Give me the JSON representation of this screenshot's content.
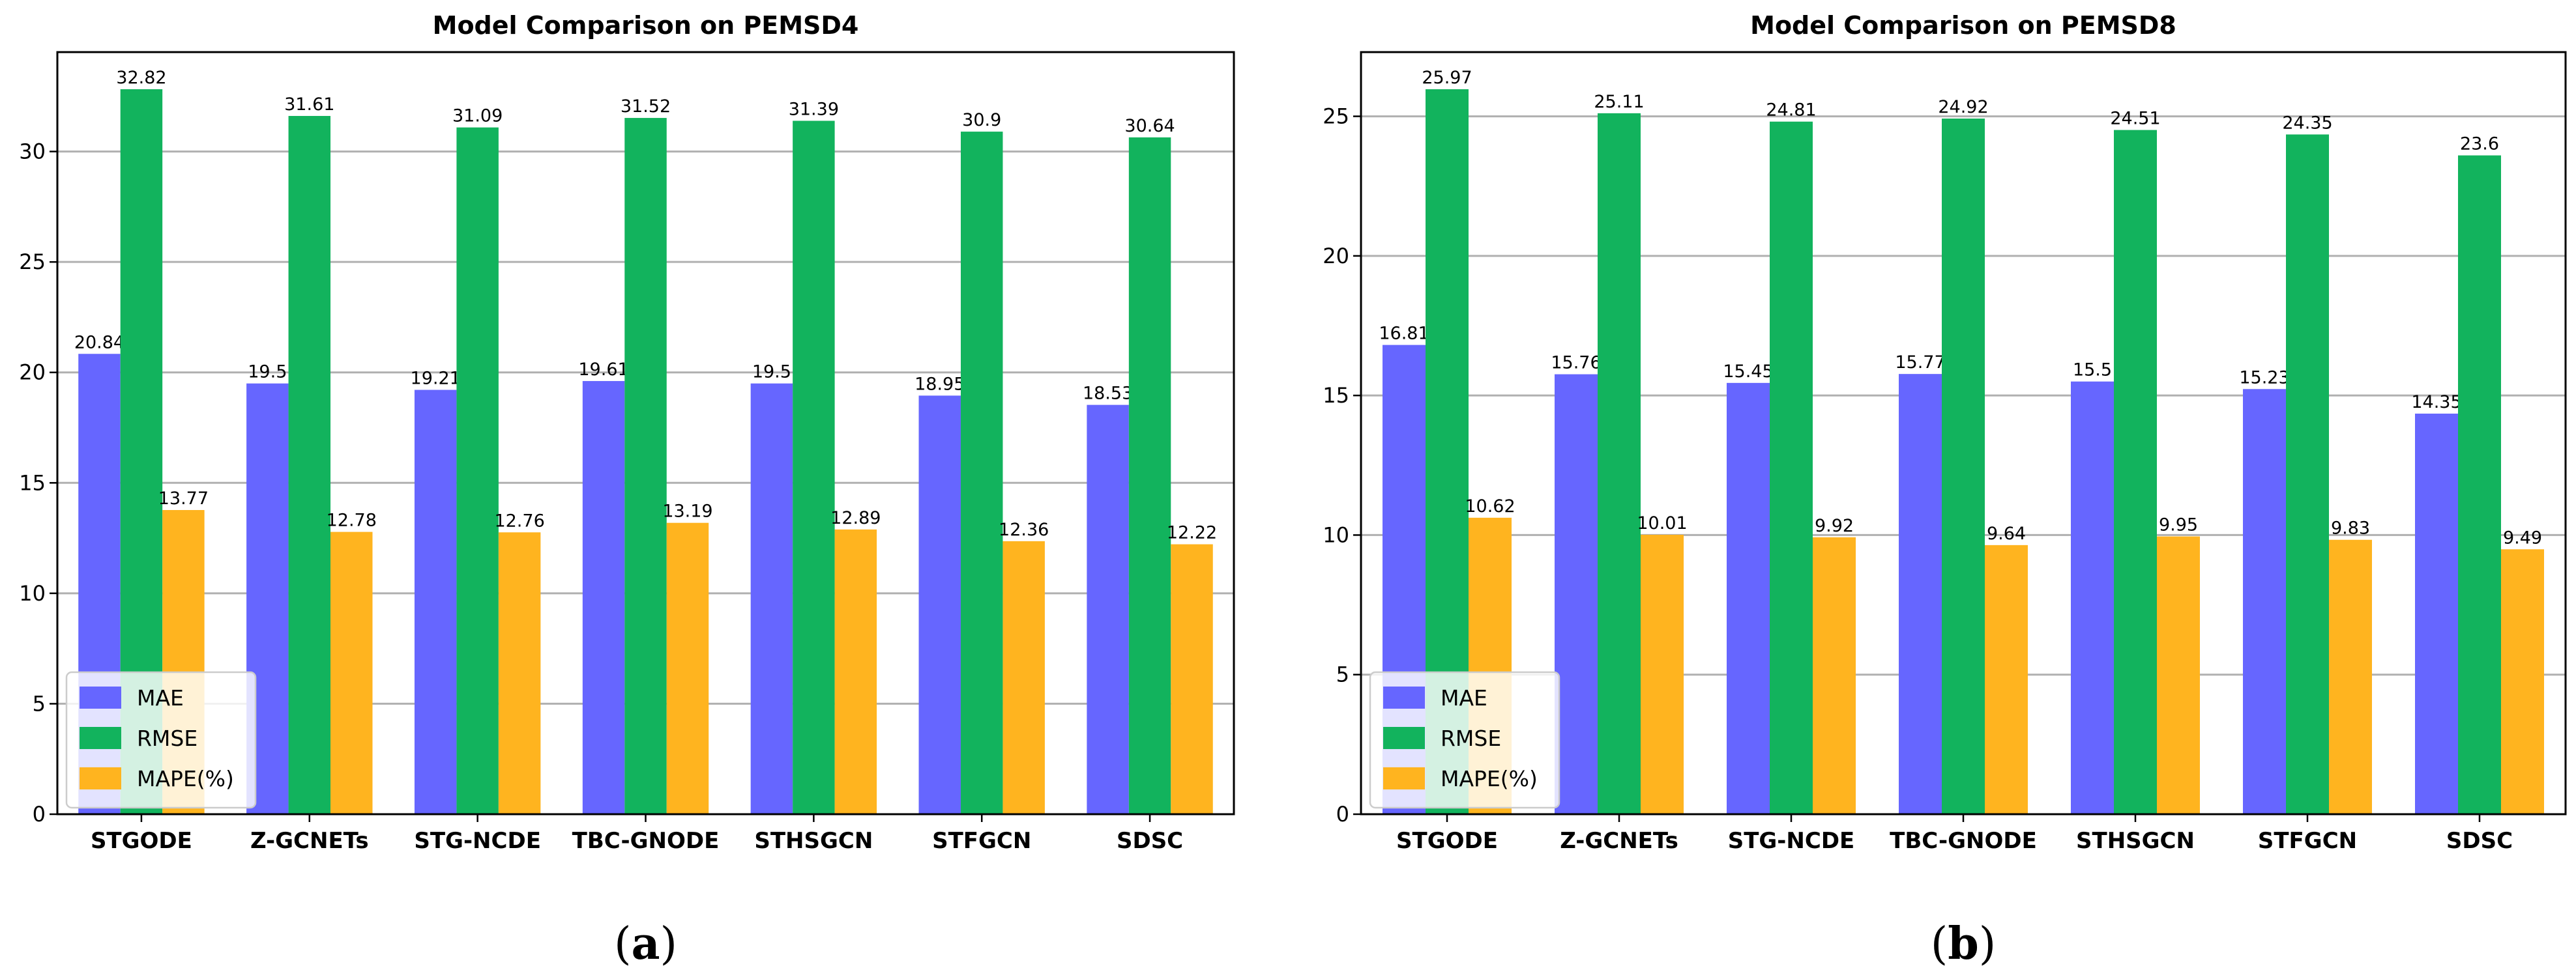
{
  "chart_data": [
    {
      "type": "bar",
      "title": "Model Comparison on PEMSD4",
      "panel_label_open": "(",
      "panel_label_letter": "a",
      "panel_label_close": ")",
      "xlabel": "",
      "ylabel": "",
      "ylim": [
        0,
        34.5
      ],
      "yticks": [
        0,
        5,
        10,
        15,
        20,
        25,
        30
      ],
      "grid": "horizontal",
      "legend_position": "bottom-left",
      "categories": [
        "STGODE",
        "Z-GCNETs",
        "STG-NCDE",
        "TBC-GNODE",
        "STHSGCN",
        "STFGCN",
        "SDSC"
      ],
      "series": [
        {
          "name": "MAE",
          "color": "#6666ff",
          "values": [
            20.84,
            19.5,
            19.21,
            19.61,
            19.5,
            18.95,
            18.53
          ],
          "labels": [
            "20.84",
            "19.5",
            "19.21",
            "19.61",
            "19.5",
            "18.95",
            "18.53"
          ]
        },
        {
          "name": "RMSE",
          "color": "#12b35d",
          "values": [
            32.82,
            31.61,
            31.09,
            31.52,
            31.39,
            30.9,
            30.64
          ],
          "labels": [
            "32.82",
            "31.61",
            "31.09",
            "31.52",
            "31.39",
            "30.9",
            "30.64"
          ]
        },
        {
          "name": "MAPE(%)",
          "color": "#ffb41f",
          "values": [
            13.77,
            12.78,
            12.76,
            13.19,
            12.89,
            12.36,
            12.22
          ],
          "labels": [
            "13.77",
            "12.78",
            "12.76",
            "13.19",
            "12.89",
            "12.36",
            "12.22"
          ]
        }
      ]
    },
    {
      "type": "bar",
      "title": "Model Comparison on PEMSD8",
      "panel_label_open": "(",
      "panel_label_letter": "b",
      "panel_label_close": ")",
      "xlabel": "",
      "ylabel": "",
      "ylim": [
        0,
        27.3
      ],
      "yticks": [
        0,
        5,
        10,
        15,
        20,
        25
      ],
      "grid": "horizontal",
      "legend_position": "bottom-left",
      "categories": [
        "STGODE",
        "Z-GCNETs",
        "STG-NCDE",
        "TBC-GNODE",
        "STHSGCN",
        "STFGCN",
        "SDSC"
      ],
      "series": [
        {
          "name": "MAE",
          "color": "#6666ff",
          "values": [
            16.81,
            15.76,
            15.45,
            15.77,
            15.5,
            15.23,
            14.35
          ],
          "labels": [
            "16.81",
            "15.76",
            "15.45",
            "15.77",
            "15.5",
            "15.23",
            "14.35"
          ]
        },
        {
          "name": "RMSE",
          "color": "#12b35d",
          "values": [
            25.97,
            25.11,
            24.81,
            24.92,
            24.51,
            24.35,
            23.6
          ],
          "labels": [
            "25.97",
            "25.11",
            "24.81",
            "24.92",
            "24.51",
            "24.35",
            "23.6"
          ]
        },
        {
          "name": "MAPE(%)",
          "color": "#ffb41f",
          "values": [
            10.62,
            10.01,
            9.92,
            9.64,
            9.95,
            9.83,
            9.49
          ],
          "labels": [
            "10.62",
            "10.01",
            "9.92",
            "9.64",
            "9.95",
            "9.83",
            "9.49"
          ]
        }
      ]
    }
  ]
}
